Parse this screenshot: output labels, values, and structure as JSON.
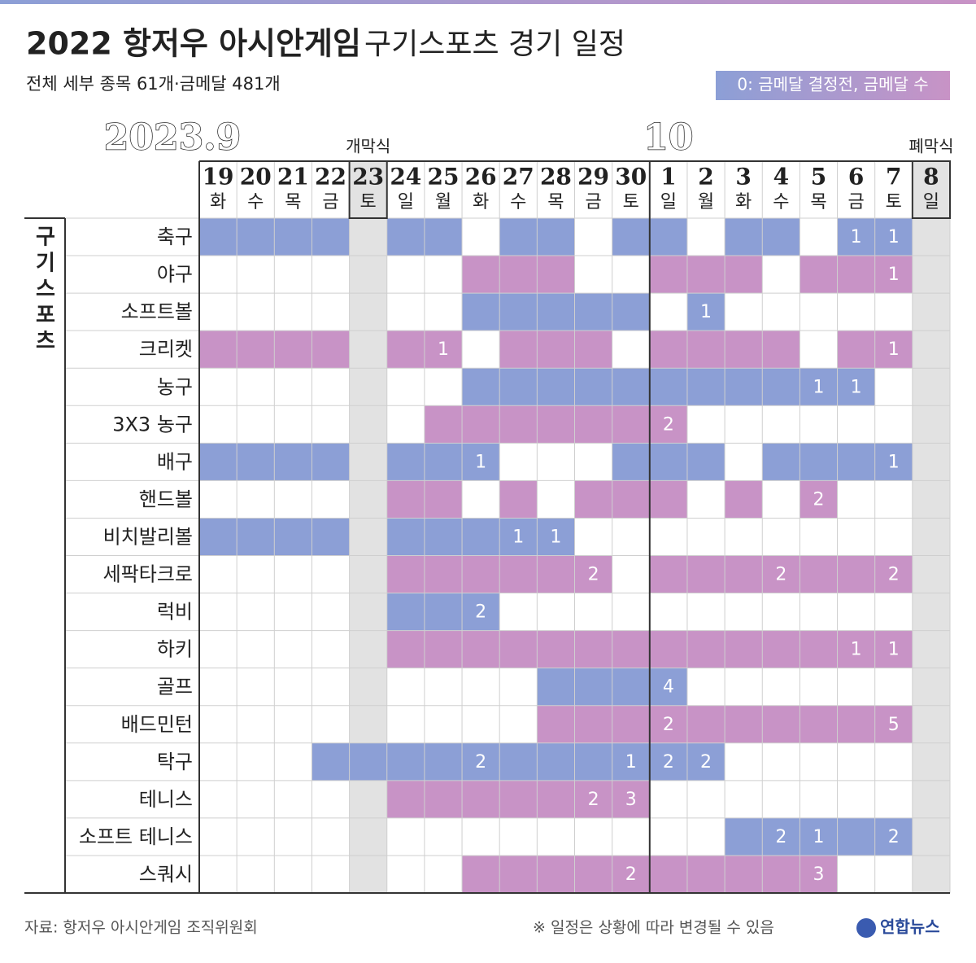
{
  "header": {
    "title": "2022 항저우 아시안게임",
    "title_light": "구기스포츠 경기 일정",
    "subtitle": "전체 세부 종목 61개·금메달 481개",
    "legend": "0: 금메달 결정전, 금메달 수"
  },
  "table": {
    "group": "구기스포츠",
    "months": [
      {
        "label": "2023.9",
        "days": [
          {
            "day": "19",
            "weekday": "화"
          },
          {
            "day": "20",
            "weekday": "수"
          },
          {
            "day": "21",
            "weekday": "목"
          },
          {
            "day": "22",
            "weekday": "금"
          },
          {
            "day": "23",
            "weekday": "토",
            "event": "개막식"
          },
          {
            "day": "24",
            "weekday": "일"
          },
          {
            "day": "25",
            "weekday": "월"
          },
          {
            "day": "26",
            "weekday": "화"
          },
          {
            "day": "27",
            "weekday": "수"
          },
          {
            "day": "28",
            "weekday": "목"
          },
          {
            "day": "29",
            "weekday": "금"
          },
          {
            "day": "30",
            "weekday": "토"
          }
        ]
      },
      {
        "label": "10",
        "days": [
          {
            "day": "1",
            "weekday": "일"
          },
          {
            "day": "2",
            "weekday": "월"
          },
          {
            "day": "3",
            "weekday": "화"
          },
          {
            "day": "4",
            "weekday": "수"
          },
          {
            "day": "5",
            "weekday": "목"
          },
          {
            "day": "6",
            "weekday": "금"
          },
          {
            "day": "7",
            "weekday": "토"
          },
          {
            "day": "8",
            "weekday": "일",
            "event": "폐막식"
          }
        ]
      }
    ],
    "rows": [
      {
        "sport": "축구",
        "color": "#8c9fd6",
        "cells": [
          true,
          true,
          true,
          true,
          null,
          true,
          true,
          null,
          true,
          true,
          null,
          true,
          true,
          null,
          true,
          true,
          null,
          1,
          1,
          null
        ]
      },
      {
        "sport": "야구",
        "color": "#c893c6",
        "cells": [
          null,
          null,
          null,
          null,
          null,
          null,
          null,
          true,
          true,
          true,
          null,
          null,
          true,
          true,
          true,
          null,
          true,
          true,
          1,
          null
        ]
      },
      {
        "sport": "소프트볼",
        "color": "#8c9fd6",
        "cells": [
          null,
          null,
          null,
          null,
          null,
          null,
          null,
          true,
          true,
          true,
          true,
          true,
          null,
          1,
          null,
          null,
          null,
          null,
          null,
          null
        ]
      },
      {
        "sport": "크리켓",
        "color": "#c893c6",
        "cells": [
          true,
          true,
          true,
          true,
          null,
          true,
          1,
          null,
          true,
          true,
          true,
          null,
          true,
          true,
          true,
          true,
          null,
          true,
          1,
          null
        ]
      },
      {
        "sport": "농구",
        "color": "#8c9fd6",
        "cells": [
          null,
          null,
          null,
          null,
          null,
          null,
          null,
          true,
          true,
          true,
          true,
          true,
          true,
          true,
          true,
          true,
          1,
          1,
          null,
          null
        ]
      },
      {
        "sport": "3X3 농구",
        "color": "#c893c6",
        "cells": [
          null,
          null,
          null,
          null,
          null,
          null,
          true,
          true,
          true,
          true,
          true,
          true,
          2,
          null,
          null,
          null,
          null,
          null,
          null,
          null
        ]
      },
      {
        "sport": "배구",
        "color": "#8c9fd6",
        "cells": [
          true,
          true,
          true,
          true,
          null,
          true,
          true,
          1,
          null,
          null,
          null,
          true,
          true,
          true,
          null,
          true,
          true,
          true,
          1,
          null
        ]
      },
      {
        "sport": "핸드볼",
        "color": "#c893c6",
        "cells": [
          null,
          null,
          null,
          null,
          null,
          true,
          true,
          null,
          true,
          null,
          true,
          true,
          true,
          null,
          true,
          null,
          2,
          null,
          null,
          null
        ]
      },
      {
        "sport": "비치발리볼",
        "color": "#8c9fd6",
        "cells": [
          true,
          true,
          true,
          true,
          null,
          true,
          true,
          true,
          1,
          1,
          null,
          null,
          null,
          null,
          null,
          null,
          null,
          null,
          null,
          null
        ]
      },
      {
        "sport": "세팍타크로",
        "color": "#c893c6",
        "cells": [
          null,
          null,
          null,
          null,
          null,
          true,
          true,
          true,
          true,
          true,
          2,
          null,
          true,
          true,
          true,
          2,
          true,
          true,
          2,
          null
        ]
      },
      {
        "sport": "럭비",
        "color": "#8c9fd6",
        "cells": [
          null,
          null,
          null,
          null,
          null,
          true,
          true,
          2,
          null,
          null,
          null,
          null,
          null,
          null,
          null,
          null,
          null,
          null,
          null,
          null
        ]
      },
      {
        "sport": "하키",
        "color": "#c893c6",
        "cells": [
          null,
          null,
          null,
          null,
          null,
          true,
          true,
          true,
          true,
          true,
          true,
          true,
          true,
          true,
          true,
          true,
          true,
          1,
          1,
          null
        ]
      },
      {
        "sport": "골프",
        "color": "#8c9fd6",
        "cells": [
          null,
          null,
          null,
          null,
          null,
          null,
          null,
          null,
          null,
          true,
          true,
          true,
          4,
          null,
          null,
          null,
          null,
          null,
          null,
          null
        ]
      },
      {
        "sport": "배드민턴",
        "color": "#c893c6",
        "cells": [
          null,
          null,
          null,
          null,
          null,
          null,
          null,
          null,
          null,
          true,
          true,
          true,
          2,
          true,
          true,
          true,
          true,
          true,
          5,
          null
        ]
      },
      {
        "sport": "탁구",
        "color": "#8c9fd6",
        "cells": [
          null,
          null,
          null,
          true,
          true,
          true,
          true,
          2,
          true,
          true,
          true,
          1,
          2,
          2,
          null,
          null,
          null,
          null,
          null,
          null
        ]
      },
      {
        "sport": "테니스",
        "color": "#c893c6",
        "cells": [
          null,
          null,
          null,
          null,
          null,
          true,
          true,
          true,
          true,
          true,
          2,
          3,
          null,
          null,
          null,
          null,
          null,
          null,
          null,
          null
        ]
      },
      {
        "sport": "소프트 테니스",
        "color": "#8c9fd6",
        "cells": [
          null,
          null,
          null,
          null,
          null,
          null,
          null,
          null,
          null,
          null,
          null,
          null,
          null,
          null,
          true,
          2,
          1,
          true,
          2,
          null
        ]
      },
      {
        "sport": "스쿼시",
        "color": "#c893c6",
        "cells": [
          null,
          null,
          null,
          null,
          null,
          null,
          null,
          true,
          true,
          true,
          true,
          2,
          true,
          true,
          true,
          true,
          3,
          null,
          null,
          null
        ]
      }
    ]
  },
  "footer": {
    "source": "자료: 항저우 아시안게임 조직위원회",
    "note": "※ 일정은 상황에 따라 변경될 수 있음",
    "logo": "연합뉴스"
  }
}
